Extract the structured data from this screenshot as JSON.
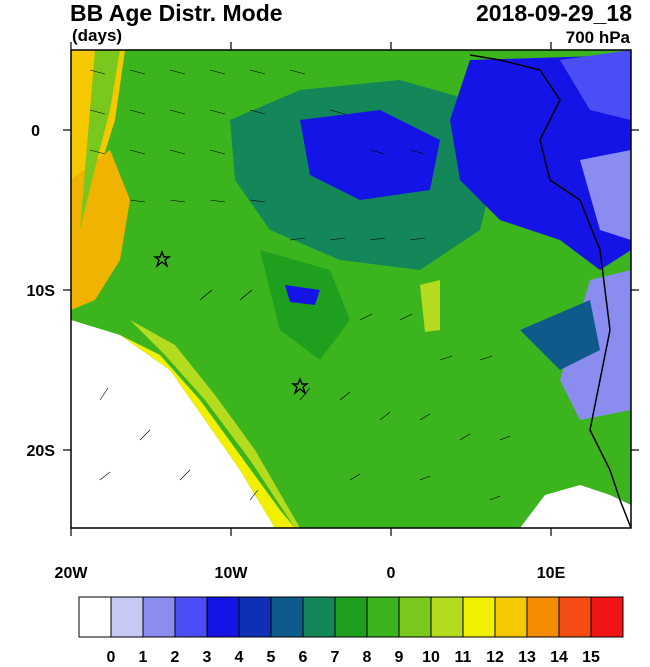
{
  "header": {
    "title_left": "BB Age Distr. Mode",
    "title_right": "2018-09-29_18",
    "subtitle_left": "(days)",
    "subtitle_right": "700 hPa"
  },
  "axes": {
    "lon_ticks": [
      "20W",
      "10W",
      "0",
      "10E"
    ],
    "lat_ticks": [
      "0",
      "10S",
      "20S"
    ]
  },
  "colorbar": {
    "labels": [
      "0",
      "1",
      "2",
      "3",
      "4",
      "5",
      "6",
      "7",
      "8",
      "9",
      "10",
      "11",
      "12",
      "13",
      "14",
      "15"
    ],
    "colors": [
      "#ffffff",
      "#c8c8f5",
      "#8a8cf0",
      "#4b4df5",
      "#1414e6",
      "#0f2fb4",
      "#0f5a8c",
      "#14875a",
      "#1ea01e",
      "#3cb41e",
      "#78c81e",
      "#b4dc1e",
      "#f0f000",
      "#f5c800",
      "#f58c00",
      "#f54b14",
      "#f01414"
    ]
  },
  "markers": [
    "star-a",
    "star-b"
  ]
}
